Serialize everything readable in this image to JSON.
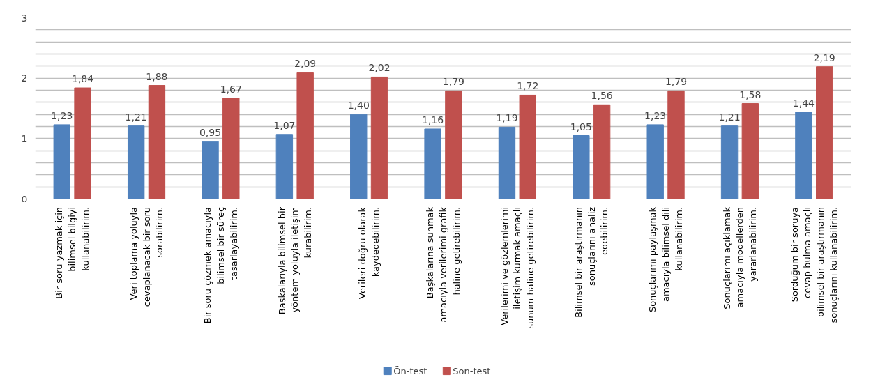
{
  "chart_data": {
    "type": "bar",
    "categories": [
      "Bir soru yazmak için\nbilimsel bilgiyi\nkullanabilirim.",
      "Veri toplama yoluyla\ncevaplanacak bir soru\nsorabilirim.",
      "Bir soru çözmek amacıyla\nbilimsel bir süreç\ntasarlayabilirim.",
      "Başkalarıyla bilimsel bir\nyöntem yoluyla iletişim\nkurabilirim.",
      "Verileri doğru olarak\nkaydedebilirim.",
      "Başkalarına sunmak\namacıyla verilerimi grafik\nhaline getirebilirim.",
      "Verilerimi ve gözlemlerimi\niletişim kurmak amaçlı\nsunum haline getirebilirim.",
      "Bilimsel bir araştırmanın\nsonuçlarını analiz\nedebilirim.",
      "Sonuçlarımı paylaşmak\namacıyla bilimsel dili\nkullanabilirim.",
      "Sonuçlarımı açıklamak\namacıyla modellerden\nyararlanabilirim.",
      "Sorduğum bir soruya\ncevap bulma amaçlı\nbilimsel bir araştırmanın\nsonuçlarını kullanabilirim."
    ],
    "series": [
      {
        "name": "Ön-test",
        "color": "#4f81bd",
        "values": [
          1.23,
          1.21,
          0.95,
          1.07,
          1.4,
          1.16,
          1.19,
          1.05,
          1.23,
          1.21,
          1.44
        ],
        "value_labels": [
          "1,23",
          "1,21",
          "0,95",
          "1,07",
          "1,40",
          "1,16",
          "1,19",
          "1,05",
          "1,23",
          "1,21",
          "1,44"
        ]
      },
      {
        "name": "Son-test",
        "color": "#c0504d",
        "values": [
          1.84,
          1.88,
          1.67,
          2.09,
          2.02,
          1.79,
          1.72,
          1.56,
          1.79,
          1.58,
          2.19
        ],
        "value_labels": [
          "1,84",
          "1,88",
          "1,67",
          "2,09",
          "2,02",
          "1,79",
          "1,72",
          "1,56",
          "1,79",
          "1,58",
          "2,19"
        ]
      }
    ],
    "ylim": [
      0,
      3
    ],
    "yticks": [
      0,
      {
        "value": 0.2,
        "label": null
      },
      {
        "value": 0.4,
        "label": null
      },
      {
        "value": 0.6,
        "label": null
      },
      {
        "value": 0.8,
        "label": null
      },
      1,
      {
        "value": 1.2,
        "label": null
      },
      {
        "value": 1.4,
        "label": null
      },
      {
        "value": 1.6,
        "label": null
      },
      {
        "value": 1.8,
        "label": null
      },
      2,
      {
        "value": 2.2,
        "label": null
      },
      {
        "value": 2.4,
        "label": null
      },
      {
        "value": 2.6,
        "label": null
      },
      {
        "value": 2.8,
        "label": null
      },
      3
    ],
    "grid": "y",
    "legend": "bottom"
  }
}
